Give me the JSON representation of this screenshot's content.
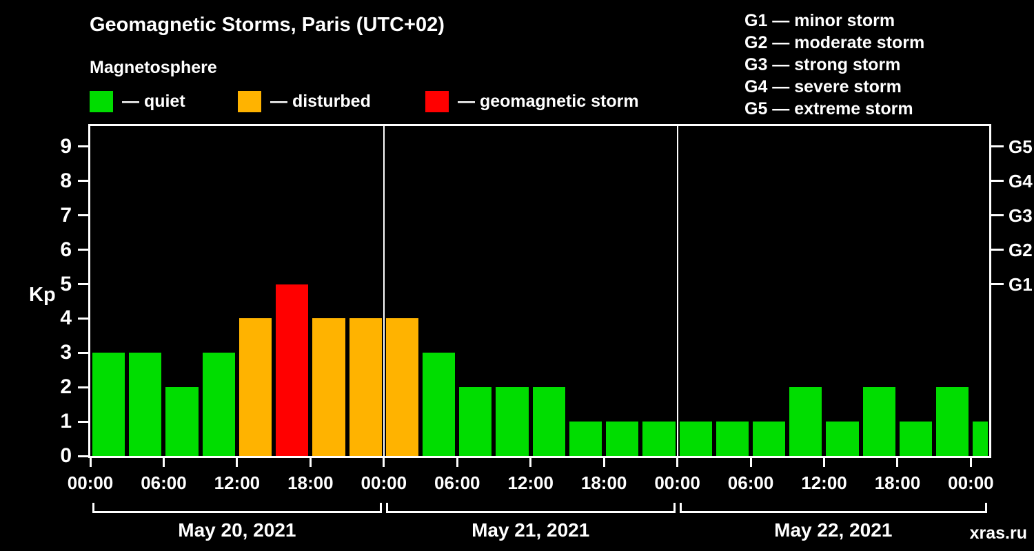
{
  "header": {
    "title": "Geomagnetic Storms, Paris (UTC+02)",
    "subtitle": "Magnetosphere"
  },
  "legend": {
    "items": [
      {
        "name": "quiet",
        "label": "— quiet",
        "color": "#00dd00"
      },
      {
        "name": "disturbed",
        "label": "— disturbed",
        "color": "#ffb300"
      },
      {
        "name": "storm",
        "label": "— geomagnetic storm",
        "color": "#ff0000"
      }
    ]
  },
  "g_scale_legend": [
    "G1 — minor storm",
    "G2 — moderate storm",
    "G3 — strong storm",
    "G4 — severe storm",
    "G5 — extreme storm"
  ],
  "watermark": "xras.ru",
  "chart_data": {
    "type": "bar",
    "title": "Geomagnetic Storms, Paris (UTC+02)",
    "subtitle": "Magnetosphere",
    "xlabel": "",
    "ylabel": "Kp",
    "ylim": [
      0,
      9.6
    ],
    "yticks": [
      "0",
      "1",
      "2",
      "3",
      "4",
      "5",
      "6",
      "7",
      "8",
      "9"
    ],
    "x_tick_labels": [
      "00:00",
      "06:00",
      "12:00",
      "18:00",
      "00:00",
      "06:00",
      "12:00",
      "18:00",
      "00:00",
      "06:00",
      "12:00",
      "18:00",
      "00:00"
    ],
    "right_axis": [
      {
        "label": "G1",
        "value": 5
      },
      {
        "label": "G2",
        "value": 6
      },
      {
        "label": "G3",
        "value": 7
      },
      {
        "label": "G4",
        "value": 8
      },
      {
        "label": "G5",
        "value": 9
      }
    ],
    "hours_per_bar": 3,
    "days": [
      {
        "label": "May 20, 2021",
        "values": [
          3,
          3,
          2,
          3,
          4,
          5,
          4,
          4
        ]
      },
      {
        "label": "May 21, 2021",
        "values": [
          4,
          3,
          2,
          2,
          2,
          1,
          1,
          1
        ]
      },
      {
        "label": "May 22, 2021",
        "values": [
          1,
          1,
          1,
          2,
          1,
          2,
          1,
          2
        ]
      }
    ],
    "partial_next_value": 1,
    "bar_colors": {
      "quiet": "#00dd00",
      "disturbed": "#ffb300",
      "storm": "#ff0000"
    },
    "color_rule": {
      "disturbed_min_kp": 4,
      "storm_min_kp": 5
    },
    "grid": false,
    "legend_position": "top",
    "background": "#000000"
  }
}
